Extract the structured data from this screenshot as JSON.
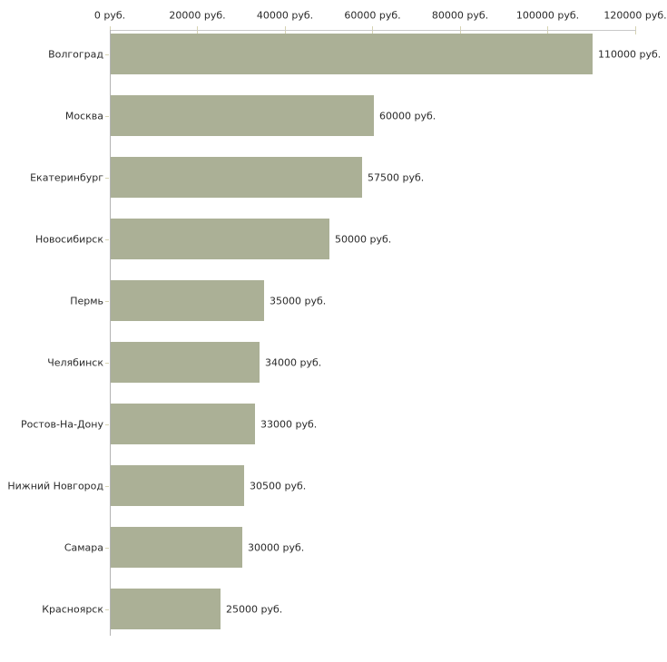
{
  "chart_data": {
    "type": "bar",
    "orientation": "horizontal",
    "title": "",
    "xlabel": "",
    "ylabel": "",
    "unit": "руб.",
    "grid": false,
    "legend": false,
    "categories": [
      "Волгоград",
      "Москва",
      "Екатеринбург",
      "Новосибирск",
      "Пермь",
      "Челябинск",
      "Ростов-На-Дону",
      "Нижний Новгород",
      "Самара",
      "Красноярск"
    ],
    "values": [
      110000,
      60000,
      57500,
      50000,
      35000,
      34000,
      33000,
      30500,
      30000,
      25000
    ],
    "value_labels": [
      "110000 руб.",
      "60000 руб.",
      "57500 руб.",
      "50000 руб.",
      "35000 руб.",
      "34000 руб.",
      "33000 руб.",
      "30500 руб.",
      "30000 руб.",
      "25000 руб."
    ],
    "xlim": [
      0,
      120000
    ],
    "x_ticks": [
      {
        "value": 0,
        "label": "0 руб."
      },
      {
        "value": 20000,
        "label": "20000 руб."
      },
      {
        "value": 40000,
        "label": "40000 руб."
      },
      {
        "value": 60000,
        "label": "60000 руб."
      },
      {
        "value": 80000,
        "label": "80000 руб."
      },
      {
        "value": 100000,
        "label": "100000 руб."
      },
      {
        "value": 120000,
        "label": "120000 руб."
      }
    ],
    "colors": {
      "bar": "#abb096",
      "x_axis_line": "#c8c8c8",
      "y_axis_line": "#b4b4b4",
      "tick": "#d6d3b2",
      "text": "#2a2a2a",
      "background": "#ffffff"
    }
  }
}
